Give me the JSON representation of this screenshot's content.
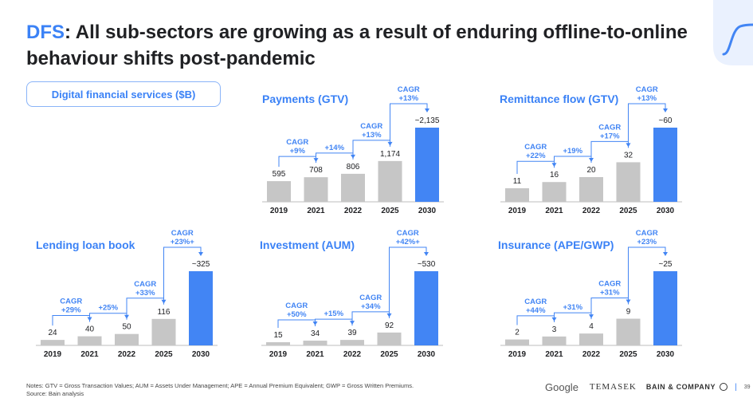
{
  "title_accent": "DFS",
  "title_rest": ": All sub-sectors are growing as a result of enduring offline-to-online behaviour shifts post-pandemic",
  "pill": "Digital financial services ($B)",
  "colors": {
    "accent": "#4285f4",
    "bar": "#c6c6c6",
    "text": "#202124"
  },
  "chart_data": [
    {
      "type": "bar",
      "title": "Payments (GTV)",
      "categories": [
        "2019",
        "2021",
        "2022",
        "2025",
        "2030"
      ],
      "values": [
        595,
        708,
        806,
        1174,
        2135
      ],
      "value_labels": [
        "595",
        "708",
        "806",
        "1,174",
        "~2,135"
      ],
      "cagr": [
        {
          "from": 0,
          "to": 1,
          "label": "CAGR\n+9%"
        },
        {
          "from": 1,
          "to": 2,
          "label": "+14%"
        },
        {
          "from": 2,
          "to": 3,
          "label": "CAGR\n+13%"
        },
        {
          "from": 3,
          "to": 4,
          "label": "CAGR\n+13%"
        }
      ]
    },
    {
      "type": "bar",
      "title": "Remittance flow (GTV)",
      "categories": [
        "2019",
        "2021",
        "2022",
        "2025",
        "2030"
      ],
      "values": [
        11,
        16,
        20,
        32,
        60
      ],
      "value_labels": [
        "11",
        "16",
        "20",
        "32",
        "~60"
      ],
      "cagr": [
        {
          "from": 0,
          "to": 1,
          "label": "CAGR\n+22%"
        },
        {
          "from": 1,
          "to": 2,
          "label": "+19%"
        },
        {
          "from": 2,
          "to": 3,
          "label": "CAGR\n+17%"
        },
        {
          "from": 3,
          "to": 4,
          "label": "CAGR\n+13%"
        }
      ]
    },
    {
      "type": "bar",
      "title": "Lending loan book",
      "categories": [
        "2019",
        "2021",
        "2022",
        "2025",
        "2030"
      ],
      "values": [
        24,
        40,
        50,
        116,
        325
      ],
      "value_labels": [
        "24",
        "40",
        "50",
        "116",
        "~325"
      ],
      "cagr": [
        {
          "from": 0,
          "to": 1,
          "label": "CAGR\n+29%"
        },
        {
          "from": 1,
          "to": 2,
          "label": "+25%"
        },
        {
          "from": 2,
          "to": 3,
          "label": "CAGR\n+33%"
        },
        {
          "from": 3,
          "to": 4,
          "label": "CAGR\n+23%+"
        }
      ]
    },
    {
      "type": "bar",
      "title": "Investment (AUM)",
      "categories": [
        "2019",
        "2021",
        "2022",
        "2025",
        "2030"
      ],
      "values": [
        15,
        34,
        39,
        92,
        530
      ],
      "value_labels": [
        "15",
        "34",
        "39",
        "92",
        "~530"
      ],
      "cagr": [
        {
          "from": 0,
          "to": 1,
          "label": "CAGR\n+50%"
        },
        {
          "from": 1,
          "to": 2,
          "label": "+15%"
        },
        {
          "from": 2,
          "to": 3,
          "label": "CAGR\n+34%"
        },
        {
          "from": 3,
          "to": 4,
          "label": "CAGR\n+42%+"
        }
      ]
    },
    {
      "type": "bar",
      "title": "Insurance (APE/GWP)",
      "categories": [
        "2019",
        "2021",
        "2022",
        "2025",
        "2030"
      ],
      "values": [
        2,
        3,
        4,
        9,
        25
      ],
      "value_labels": [
        "2",
        "3",
        "4",
        "9",
        "~25"
      ],
      "cagr": [
        {
          "from": 0,
          "to": 1,
          "label": "CAGR\n+44%"
        },
        {
          "from": 1,
          "to": 2,
          "label": "+31%"
        },
        {
          "from": 2,
          "to": 3,
          "label": "CAGR\n+31%"
        },
        {
          "from": 3,
          "to": 4,
          "label": "CAGR\n+23%"
        }
      ]
    }
  ],
  "notes": [
    "Notes: GTV = Gross Transaction Values; AUM = Assets Under Management; APE = Annual Premium Equivalent; GWP = Gross Written Premiums.",
    "Source: Bain analysis"
  ],
  "footer": {
    "google": "Google",
    "temasek": "TEMASEK",
    "bain": "BAIN & COMPANY",
    "separator": "|",
    "page": "39"
  }
}
